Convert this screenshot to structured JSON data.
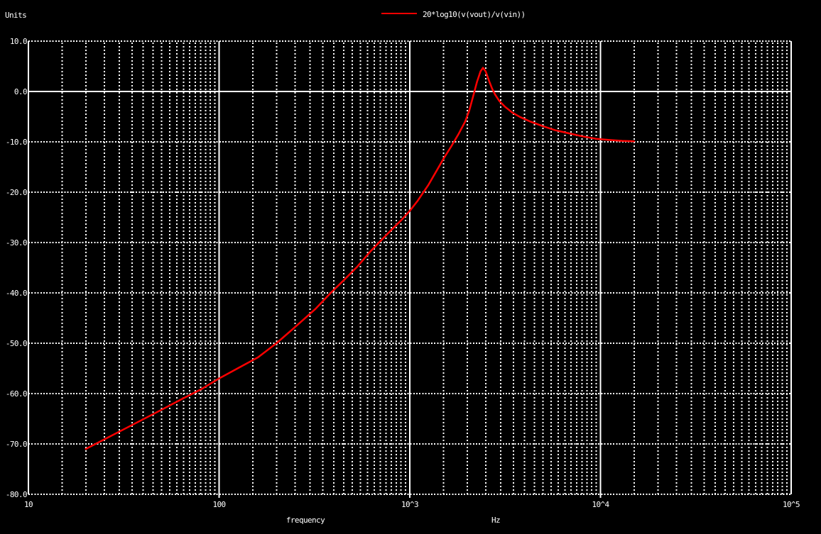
{
  "title_area": {
    "units_label": "Units",
    "legend": {
      "label": "20*log10(v(vout)/v(vin))",
      "swatch_color": "#ff0000"
    }
  },
  "axes": {
    "x_title": "frequency",
    "x_unit": "Hz",
    "x_ticks": [
      {
        "label": "10",
        "value": 10
      },
      {
        "label": "100",
        "value": 100
      },
      {
        "label": "10^3",
        "value": 1000
      },
      {
        "label": "10^4",
        "value": 10000
      },
      {
        "label": "10^5",
        "value": 100000
      }
    ],
    "y_ticks": [
      {
        "label": "10.0",
        "value": 10
      },
      {
        "label": "0.0",
        "value": 0
      },
      {
        "label": "-10.0",
        "value": -10
      },
      {
        "label": "-20.0",
        "value": -20
      },
      {
        "label": "-30.0",
        "value": -30
      },
      {
        "label": "-40.0",
        "value": -40
      },
      {
        "label": "-50.0",
        "value": -50
      },
      {
        "label": "-60.0",
        "value": -60
      },
      {
        "label": "-70.0",
        "value": -70
      },
      {
        "label": "-80.0",
        "value": -80
      }
    ]
  },
  "colors": {
    "background": "#000000",
    "text": "#ffffff",
    "grid": "#ffffff",
    "trace": "#ff0000"
  },
  "chart_data": {
    "type": "line",
    "title": "",
    "x_scale": "log",
    "xlabel": "frequency",
    "x_unit": "Hz",
    "ylabel": "Units (dB)",
    "xlim": [
      10,
      100000
    ],
    "ylim": [
      -80,
      10
    ],
    "grid": {
      "style": "dotted",
      "minor_multiples_per_decade": [
        1.5,
        2,
        2.5,
        3,
        3.5,
        4,
        4.5,
        5,
        5.5,
        6,
        6.5,
        7,
        7.5,
        8,
        8.5,
        9,
        9.5
      ],
      "solid_x_decades": [
        100,
        1000,
        10000
      ],
      "solid_y_values": [
        0
      ]
    },
    "legend_position": "top-center",
    "series": [
      {
        "name": "20*log10(v(vout)/v(vin))",
        "color": "#ff0000",
        "points_hz_db": [
          [
            20,
            -71.0
          ],
          [
            25,
            -69.1
          ],
          [
            32,
            -67.0
          ],
          [
            40,
            -65.1
          ],
          [
            50,
            -63.2
          ],
          [
            63,
            -61.2
          ],
          [
            80,
            -59.2
          ],
          [
            100,
            -57.0
          ],
          [
            125,
            -55.0
          ],
          [
            160,
            -52.8
          ],
          [
            200,
            -50.0
          ],
          [
            250,
            -46.8
          ],
          [
            320,
            -43.2
          ],
          [
            385,
            -40.0
          ],
          [
            450,
            -37.5
          ],
          [
            530,
            -34.8
          ],
          [
            620,
            -31.8
          ],
          [
            690,
            -30.0
          ],
          [
            800,
            -27.5
          ],
          [
            900,
            -25.6
          ],
          [
            1000,
            -23.7
          ],
          [
            1100,
            -21.7
          ],
          [
            1250,
            -18.6
          ],
          [
            1400,
            -15.4
          ],
          [
            1500,
            -13.4
          ],
          [
            1650,
            -10.9
          ],
          [
            1800,
            -8.5
          ],
          [
            1950,
            -6.0
          ],
          [
            2050,
            -3.8
          ],
          [
            2150,
            -0.9
          ],
          [
            2250,
            1.9
          ],
          [
            2350,
            4.0
          ],
          [
            2420,
            4.7
          ],
          [
            2500,
            4.0
          ],
          [
            2600,
            2.2
          ],
          [
            2700,
            0.6
          ],
          [
            2800,
            -0.6
          ],
          [
            2950,
            -1.9
          ],
          [
            3150,
            -3.0
          ],
          [
            3450,
            -4.2
          ],
          [
            3800,
            -5.1
          ],
          [
            4300,
            -6.0
          ],
          [
            5000,
            -6.9
          ],
          [
            5800,
            -7.7
          ],
          [
            6800,
            -8.3
          ],
          [
            8000,
            -8.9
          ],
          [
            9500,
            -9.4
          ],
          [
            11000,
            -9.6
          ],
          [
            13000,
            -9.8
          ],
          [
            15000,
            -9.9
          ]
        ]
      }
    ]
  }
}
